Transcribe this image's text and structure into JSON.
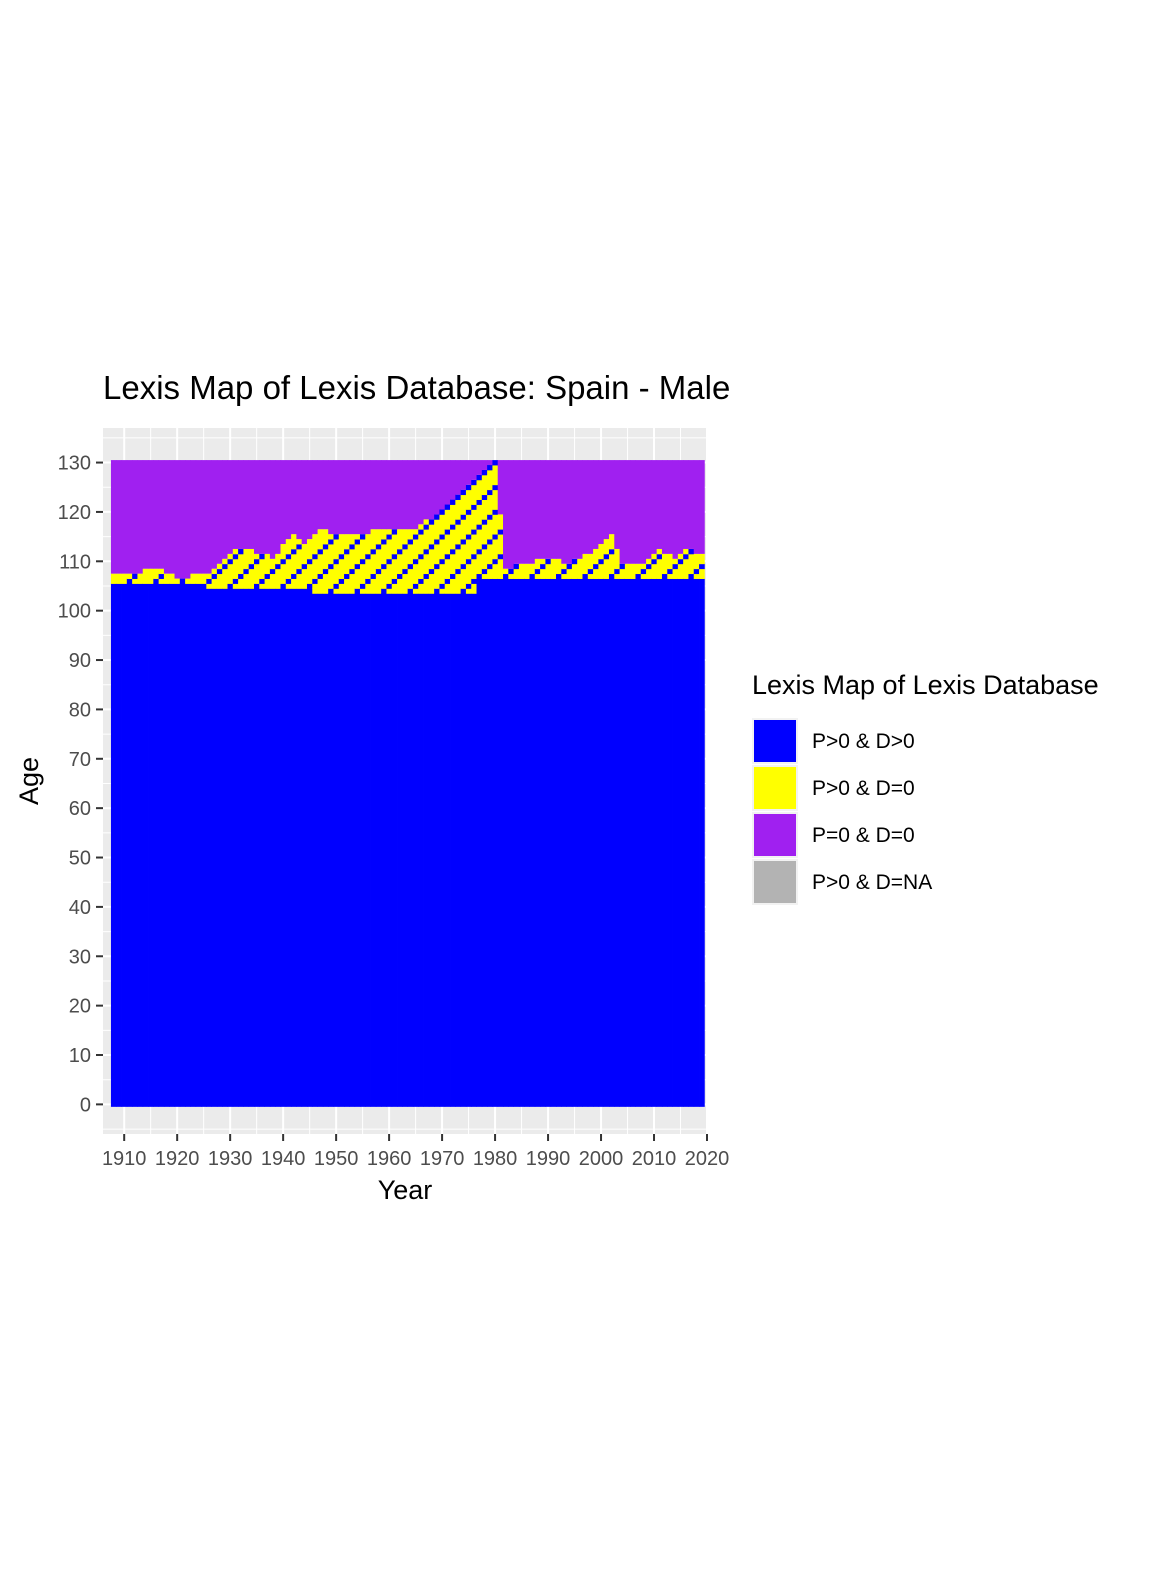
{
  "chart_data": {
    "type": "heatmap",
    "title": "Lexis Map of Lexis Database: Spain - Male",
    "xlabel": "Year",
    "ylabel": "Age",
    "xlim": [
      1906,
      2020
    ],
    "ylim": [
      -6,
      137
    ],
    "x_ticks": [
      1910,
      1920,
      1930,
      1940,
      1950,
      1960,
      1970,
      1980,
      1990,
      2000,
      2010,
      2020
    ],
    "y_ticks": [
      0,
      10,
      20,
      30,
      40,
      50,
      60,
      70,
      80,
      90,
      100,
      110,
      120,
      130
    ],
    "year_range": [
      1908,
      2019
    ],
    "age_range": [
      0,
      130
    ],
    "grid": true,
    "legend": {
      "title": "Lexis Map of Lexis Database",
      "position": "right",
      "entries": [
        {
          "label": "P>0 & D>0",
          "color": "#0000FF"
        },
        {
          "label": "P>0 & D=0",
          "color": "#FFFF00"
        },
        {
          "label": "P=0 & D=0",
          "color": "#A020F0"
        },
        {
          "label": "P>0 & D=NA",
          "color": "#B3B3B3"
        }
      ]
    },
    "blue_max_age_by_decade": [
      {
        "years": [
          1908,
          1925
        ],
        "age": 105
      },
      {
        "years": [
          1926,
          1945
        ],
        "age": 104
      },
      {
        "years": [
          1946,
          1976
        ],
        "age": 103
      },
      {
        "years": [
          1977,
          2019
        ],
        "age": 106
      }
    ],
    "yellow_upper_age_by_year": [
      {
        "year": 1908,
        "age": 107
      },
      {
        "year": 1912,
        "age": 107
      },
      {
        "year": 1916,
        "age": 108
      },
      {
        "year": 1920,
        "age": 106
      },
      {
        "year": 1926,
        "age": 107
      },
      {
        "year": 1930,
        "age": 111
      },
      {
        "year": 1932,
        "age": 112
      },
      {
        "year": 1936,
        "age": 111
      },
      {
        "year": 1938,
        "age": 110
      },
      {
        "year": 1942,
        "age": 115
      },
      {
        "year": 1944,
        "age": 113
      },
      {
        "year": 1947,
        "age": 116
      },
      {
        "year": 1950,
        "age": 115
      },
      {
        "year": 1955,
        "age": 115
      },
      {
        "year": 1958,
        "age": 116
      },
      {
        "year": 1962,
        "age": 116
      },
      {
        "year": 1965,
        "age": 116
      },
      {
        "year": 1970,
        "age": 120
      },
      {
        "year": 1975,
        "age": 125
      },
      {
        "year": 1978,
        "age": 128
      },
      {
        "year": 1980,
        "age": 130
      },
      {
        "year": 1982,
        "age": 108
      },
      {
        "year": 1986,
        "age": 109
      },
      {
        "year": 1990,
        "age": 110
      },
      {
        "year": 1994,
        "age": 109
      },
      {
        "year": 1998,
        "age": 111
      },
      {
        "year": 2000,
        "age": 113
      },
      {
        "year": 2002,
        "age": 115
      },
      {
        "year": 2004,
        "age": 109
      },
      {
        "year": 2008,
        "age": 109
      },
      {
        "year": 2011,
        "age": 112
      },
      {
        "year": 2014,
        "age": 110
      },
      {
        "year": 2016,
        "age": 112
      },
      {
        "year": 2019,
        "age": 111
      }
    ]
  }
}
